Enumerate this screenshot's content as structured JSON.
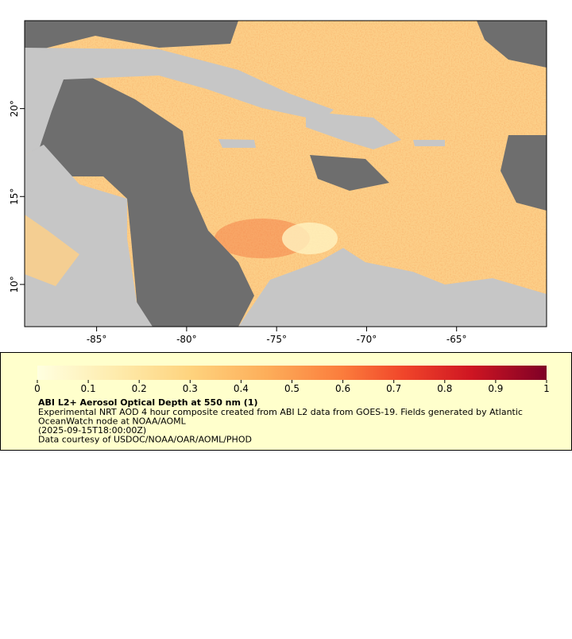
{
  "map": {
    "xlim": [
      -89,
      -60
    ],
    "ylim": [
      7.6,
      25
    ],
    "xticks": [
      {
        "value": -85,
        "label": "-85°"
      },
      {
        "value": -80,
        "label": "-80°"
      },
      {
        "value": -75,
        "label": "-75°"
      },
      {
        "value": -70,
        "label": "-70°"
      },
      {
        "value": -65,
        "label": "-65°"
      }
    ],
    "yticks": [
      {
        "value": 10,
        "label": "10°"
      },
      {
        "value": 15,
        "label": "15°"
      },
      {
        "value": 20,
        "label": "20°"
      }
    ]
  },
  "legend": {
    "range": [
      0,
      1
    ],
    "ticks": [
      0,
      0.1,
      0.2,
      0.3,
      0.4,
      0.5,
      0.6,
      0.7,
      0.8,
      0.9,
      1
    ],
    "title": "ABI L2+ Aerosol Optical Depth at 550 nm (1)",
    "lines": [
      "Experimental NRT AOD 4 hour composite created from ABI L2 data from GOES-19. Fields generated by Atlantic",
      "OceanWatch node at NOAA/AOML",
      "(2025-09-15T18:00:00Z)",
      "Data courtesy of USDOC/NOAA/OAR/AOML/PHOD"
    ]
  }
}
